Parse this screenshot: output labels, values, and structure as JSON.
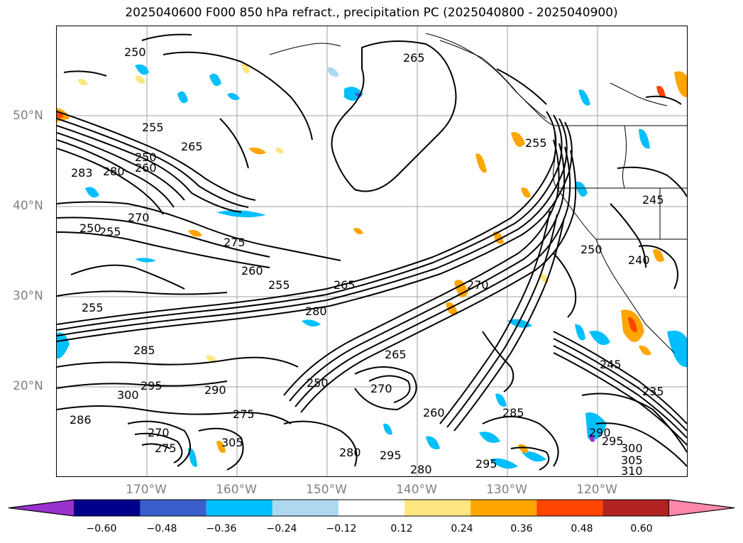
{
  "title": "2025040600 F000 850 hPa refract., precipitation PC (2025040800 - 2025040900)",
  "map": {
    "lat_labels": [
      "50°N",
      "40°N",
      "30°N",
      "20°N"
    ],
    "lon_labels": [
      "170°W",
      "160°W",
      "150°W",
      "140°W",
      "130°W",
      "120°W"
    ],
    "contour_labels": [
      "250",
      "255",
      "265",
      "265",
      "250",
      "260",
      "283",
      "280",
      "275",
      "270",
      "250",
      "255",
      "260",
      "255",
      "265",
      "280",
      "270",
      "245",
      "240",
      "250",
      "255",
      "285",
      "295",
      "300",
      "290",
      "250",
      "270",
      "265",
      "260",
      "285",
      "290",
      "295",
      "300",
      "305",
      "310",
      "280",
      "280",
      "295",
      "295",
      "305",
      "275",
      "270",
      "286",
      "245",
      "235",
      "275",
      "255"
    ]
  },
  "colorbar": {
    "ticks": [
      "−0.60",
      "−0.48",
      "−0.36",
      "−0.24",
      "−0.12",
      "0.12",
      "0.24",
      "0.36",
      "0.48",
      "0.60"
    ],
    "colors": [
      "#9932cc",
      "#00008b",
      "#3a5fcd",
      "#00bfff",
      "#add8f0",
      "#ffffff",
      "#ffe680",
      "#ffa500",
      "#ff4500",
      "#b22222",
      "#ff88aa"
    ]
  }
}
